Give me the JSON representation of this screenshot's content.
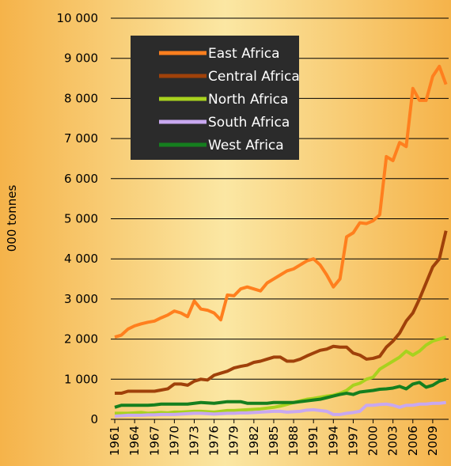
{
  "chart_data": {
    "type": "line",
    "y_label": "000 tonnes",
    "x": [
      1961,
      1962,
      1963,
      1964,
      1965,
      1966,
      1967,
      1968,
      1969,
      1970,
      1971,
      1972,
      1973,
      1974,
      1975,
      1976,
      1977,
      1978,
      1979,
      1980,
      1981,
      1982,
      1983,
      1984,
      1985,
      1986,
      1987,
      1988,
      1989,
      1990,
      1991,
      1992,
      1993,
      1994,
      1995,
      1996,
      1997,
      1998,
      1999,
      2000,
      2001,
      2002,
      2003,
      2004,
      2005,
      2006,
      2007,
      2008,
      2009,
      2010,
      2011
    ],
    "xlim": [
      1960.4,
      2011.4
    ],
    "xticks": [
      1961,
      1964,
      1967,
      1970,
      1973,
      1976,
      1979,
      1982,
      1985,
      1988,
      1991,
      1994,
      1997,
      2000,
      2003,
      2006,
      2009
    ],
    "ylim": [
      0,
      10000
    ],
    "yticks": [
      0,
      {
        "value": 1000,
        "label": "1 000"
      },
      {
        "value": 2000,
        "label": "2 000"
      },
      {
        "value": 3000,
        "label": "3 000"
      },
      {
        "value": 4000,
        "label": "4 000"
      },
      {
        "value": 5000,
        "label": "5 000"
      },
      {
        "value": 6000,
        "label": "6 000"
      },
      {
        "value": 7000,
        "label": "7 000"
      },
      {
        "value": 8000,
        "label": "8 000"
      },
      {
        "value": 9000,
        "label": "9 000"
      },
      {
        "value": 10000,
        "label": "10 000"
      }
    ],
    "grid": true,
    "legend": "upper left",
    "series": [
      {
        "name": "East Africa",
        "color": "#ff7f1e",
        "values": [
          2050,
          2100,
          2250,
          2330,
          2380,
          2420,
          2450,
          2530,
          2600,
          2700,
          2650,
          2560,
          2950,
          2750,
          2720,
          2650,
          2480,
          3100,
          3080,
          3250,
          3300,
          3250,
          3200,
          3400,
          3500,
          3600,
          3700,
          3750,
          3850,
          3950,
          4000,
          3850,
          3600,
          3300,
          3500,
          4550,
          4650,
          4900,
          4880,
          4950,
          5100,
          6550,
          6450,
          6900,
          6800,
          8250,
          7950,
          7950,
          8550,
          8800,
          8350
        ]
      },
      {
        "name": "Central Africa",
        "color": "#a0410a",
        "values": [
          650,
          650,
          700,
          700,
          700,
          700,
          700,
          730,
          760,
          880,
          880,
          850,
          950,
          1000,
          980,
          1100,
          1150,
          1200,
          1280,
          1320,
          1350,
          1420,
          1450,
          1500,
          1550,
          1550,
          1450,
          1450,
          1500,
          1580,
          1650,
          1720,
          1750,
          1820,
          1800,
          1800,
          1650,
          1600,
          1500,
          1520,
          1570,
          1800,
          1950,
          2150,
          2450,
          2650,
          3000,
          3400,
          3800,
          4000,
          4700
        ]
      },
      {
        "name": "North Africa",
        "color": "#a8d21e",
        "values": [
          150,
          150,
          150,
          160,
          170,
          150,
          160,
          170,
          160,
          180,
          180,
          190,
          200,
          200,
          190,
          180,
          200,
          220,
          220,
          230,
          240,
          250,
          260,
          280,
          300,
          330,
          370,
          420,
          460,
          500,
          520,
          550,
          580,
          600,
          650,
          720,
          850,
          900,
          1000,
          1050,
          1250,
          1350,
          1450,
          1550,
          1700,
          1600,
          1700,
          1850,
          1950,
          2000,
          2050
        ]
      },
      {
        "name": "South Africa",
        "color": "#c8a8f0",
        "values": [
          80,
          90,
          100,
          100,
          100,
          110,
          110,
          120,
          120,
          120,
          130,
          140,
          150,
          150,
          140,
          130,
          140,
          150,
          150,
          160,
          160,
          170,
          180,
          190,
          200,
          200,
          180,
          190,
          200,
          230,
          240,
          220,
          200,
          120,
          120,
          150,
          170,
          200,
          350,
          350,
          370,
          380,
          350,
          300,
          350,
          350,
          380,
          380,
          400,
          400,
          420
        ]
      },
      {
        "name": "West Africa",
        "color": "#157f1e",
        "values": [
          300,
          350,
          350,
          350,
          350,
          350,
          360,
          380,
          380,
          380,
          380,
          380,
          400,
          420,
          410,
          400,
          420,
          440,
          440,
          440,
          400,
          400,
          400,
          400,
          420,
          420,
          420,
          420,
          440,
          460,
          480,
          500,
          540,
          580,
          620,
          650,
          620,
          680,
          700,
          720,
          750,
          760,
          780,
          820,
          760,
          880,
          920,
          800,
          850,
          950,
          1000
        ]
      }
    ]
  }
}
